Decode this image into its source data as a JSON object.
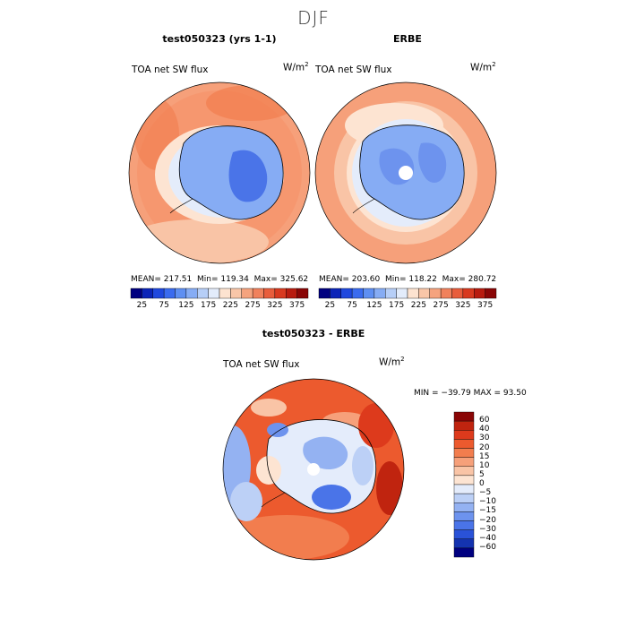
{
  "figure": {
    "season": "DJF"
  },
  "panels": [
    {
      "title": "test050323 (yrs 1-1)",
      "variable": "TOA net SW flux",
      "units": "W/m",
      "units_sup": "2",
      "stats": {
        "mean_label": "MEAN=",
        "mean": "217.51",
        "min_label": "Min=",
        "min": "119.34",
        "max_label": "Max=",
        "max": "325.62"
      }
    },
    {
      "title": "ERBE",
      "variable": "TOA net SW flux",
      "units": "W/m",
      "units_sup": "2",
      "stats": {
        "mean_label": "MEAN=",
        "mean": "203.60",
        "min_label": "Min=",
        "min": "118.22",
        "max_label": "Max=",
        "max": "280.72"
      }
    }
  ],
  "colorbar_abs": {
    "ticks": [
      "25",
      "75",
      "125",
      "175",
      "225",
      "275",
      "325",
      "375"
    ],
    "colors": [
      "#000080",
      "#0b24b8",
      "#1f48de",
      "#3a6bef",
      "#5e8ff2",
      "#86acf4",
      "#b6cef7",
      "#e3ecfb",
      "#fde3d0",
      "#f9c6a8",
      "#f5a37e",
      "#f0815c",
      "#e85d3c",
      "#d8391f",
      "#b81b0f",
      "#8a0606"
    ]
  },
  "diff_panel": {
    "title": "test050323 - ERBE",
    "variable": "TOA net SW flux",
    "units": "W/m",
    "units_sup": "2",
    "minmax": "MIN = −39.79 MAX =  93.50"
  },
  "colorbar_diff": {
    "ticks": [
      "60",
      "40",
      "30",
      "20",
      "15",
      "10",
      "5",
      "0",
      "−5",
      "−10",
      "−15",
      "−20",
      "−30",
      "−40",
      "−60"
    ],
    "colors": [
      "#8a0606",
      "#c0240f",
      "#dd3a1c",
      "#ec5a2e",
      "#f27d4e",
      "#f6a07a",
      "#f9c4a6",
      "#fde4d2",
      "#e4ecfb",
      "#bcd0f6",
      "#94b2f2",
      "#6d93ee",
      "#4a74e8",
      "#2a52d8",
      "#1433b0",
      "#000080"
    ]
  }
}
